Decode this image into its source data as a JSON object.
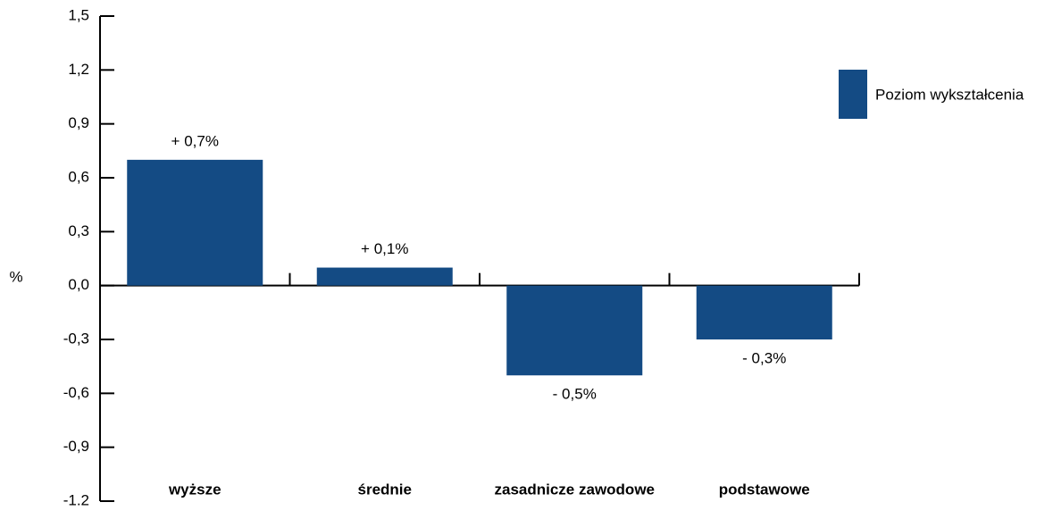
{
  "chart_data": {
    "type": "bar",
    "y_label": "%",
    "categories": [
      "wyższe",
      "średnie",
      "zasadnicze zawodowe",
      "podstawowe"
    ],
    "series": [
      {
        "name": "Poziom wykształcenia",
        "color": "#144b84",
        "values": [
          0.7,
          0.1,
          -0.5,
          -0.3
        ],
        "value_labels": [
          "+ 0,7%",
          "+ 0,1%",
          "- 0,5%",
          "- 0,3%"
        ]
      }
    ],
    "ylim": [
      -1.2,
      1.5
    ],
    "yticks": [
      {
        "value": 1.5,
        "label": "1,5"
      },
      {
        "value": 1.2,
        "label": "1,2"
      },
      {
        "value": 0.9,
        "label": "0,9"
      },
      {
        "value": 0.6,
        "label": "0,6"
      },
      {
        "value": 0.3,
        "label": "0,3"
      },
      {
        "value": 0,
        "label": "0,0"
      },
      {
        "value": -0.3,
        "label": "-0,3"
      },
      {
        "value": -0.6,
        "label": "-0,6"
      },
      {
        "value": -0.9,
        "label": "-0,9"
      },
      -1.2
    ],
    "legend": "right"
  }
}
